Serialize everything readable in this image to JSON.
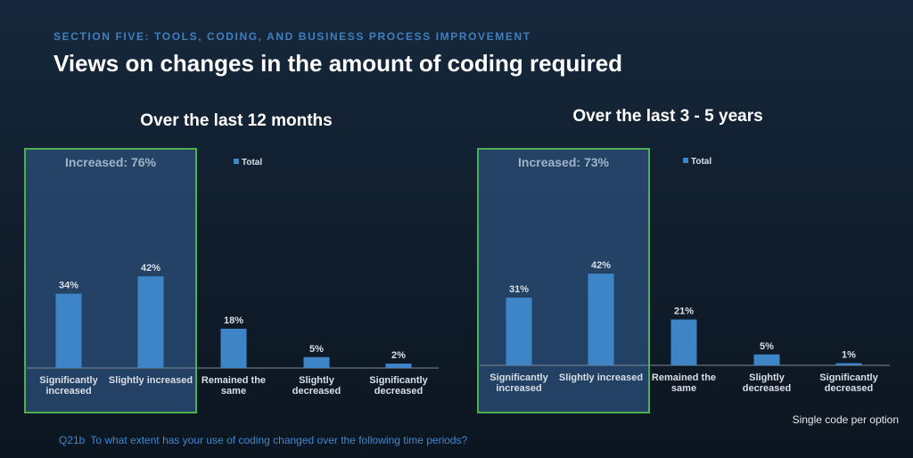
{
  "header": {
    "section": "SECTION FIVE: TOOLS, CODING, AND BUSINESS PROCESS IMPROVEMENT",
    "title": "Views on changes in the amount of coding required"
  },
  "footer": {
    "note": "Single code per option",
    "question_id": "Q21b",
    "question": "To what extent has your use of coding changed over the following time periods?"
  },
  "colors": {
    "bar": "#3d85c6",
    "highlight_border": "#4caf50",
    "highlight_fill": "#2b4f7a"
  },
  "chart_data": [
    {
      "type": "bar",
      "title": "Over the last 12 months",
      "legend": "Total",
      "legend_placement": "top",
      "highlight_label": "Increased: 76%",
      "categories": [
        [
          "Significantly",
          "increased"
        ],
        [
          "Slightly increased"
        ],
        [
          "Remained the",
          "same"
        ],
        [
          "Slightly",
          "decreased"
        ],
        [
          "Significantly",
          "decreased"
        ]
      ],
      "values": [
        34,
        42,
        18,
        5,
        2
      ],
      "value_labels": [
        "34%",
        "42%",
        "18%",
        "5%",
        "2%"
      ],
      "grid": false
    },
    {
      "type": "bar",
      "title": "Over the last 3 - 5 years",
      "legend": "Total",
      "legend_placement": "top",
      "highlight_label": "Increased: 73%",
      "categories": [
        [
          "Significantly",
          "increased"
        ],
        [
          "Slightly increased"
        ],
        [
          "Remained the",
          "same"
        ],
        [
          "Slightly",
          "decreased"
        ],
        [
          "Significantly",
          "decreased"
        ]
      ],
      "values": [
        31,
        42,
        21,
        5,
        1
      ],
      "value_labels": [
        "31%",
        "42%",
        "21%",
        "5%",
        "1%"
      ],
      "grid": false
    }
  ]
}
